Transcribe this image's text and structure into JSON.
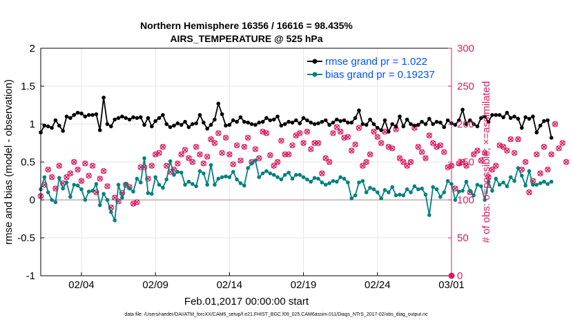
{
  "chart_data": {
    "type": "line",
    "title_line1": "Northern Hemisphere 16356 / 16616 = 98.435%",
    "title_line2": "AIRS_TEMPERATURE @ 525 hPa",
    "xlabel": "Feb.01,2017 00:00:00 start",
    "ylabel_left": "rmse and bias (model - observation)",
    "ylabel_right": "# of obs: o=possible; ×=assimilated",
    "footnote": "data file: /Users/raeder/DAI/ATM_forcXX/CAM6_setup/f.e21.FHIST_BGC.f09_025.CAM6assim.011/Diags_NTrS_2017-02/obs_diag_output.nc",
    "x_ticks": [
      "02/04",
      "02/09",
      "02/14",
      "02/19",
      "02/24",
      "03/01"
    ],
    "x_tick_days": [
      3,
      8,
      13,
      18,
      23,
      28
    ],
    "xlim": [
      0.25,
      28.0
    ],
    "ylim_left": [
      -1,
      2
    ],
    "y_ticks_left": [
      "-1",
      "-0.5",
      "0",
      "0.5",
      "1",
      "1.5",
      "2"
    ],
    "ylim_right": [
      0,
      300
    ],
    "y_ticks_right": [
      "0",
      "50",
      "100",
      "150",
      "200",
      "250",
      "300"
    ],
    "colors": {
      "rmse": "#000000",
      "bias": "#008080",
      "obs": "#d81b60",
      "legend_text": "#0050ff",
      "zero": "#b08080"
    },
    "legend": {
      "rmse": "rmse grand pr = 1.022",
      "bias": "bias grand pr = 0.19237"
    },
    "x_start": 0.25,
    "x_step": 0.25,
    "series": [
      {
        "name": "rmse",
        "values": [
          0.89,
          0.98,
          0.97,
          0.95,
          1.05,
          0.98,
          0.91,
          1.1,
          1.08,
          1.12,
          1.15,
          1.14,
          1.1,
          1.12,
          1.12,
          1.13,
          0.92,
          1.35,
          1.0,
          0.97,
          1.06,
          1.08,
          1.1,
          1.08,
          1.06,
          1.09,
          1.08,
          1.09,
          0.99,
          1.08,
          0.97,
          1.04,
          1.08,
          1.12,
          1.0,
          0.96,
          0.98,
          1.01,
          0.99,
          1.03,
          0.96,
          1.0,
          1.01,
          1.12,
          1.02,
          0.94,
          0.99,
          1.06,
          1.27,
          1.13,
          0.98,
          0.99,
          1.05,
          1.03,
          1.09,
          1.03,
          1.02,
          1.0,
          0.99,
          1.02,
          1.03,
          1.08,
          1.05,
          1.06,
          1.1,
          0.98,
          1.0,
          1.03,
          1.02,
          1.05,
          1.01,
          1.08,
          1.05,
          1.02,
          1.0,
          1.01,
          1.03,
          1.05,
          0.99,
          1.02,
          1.06,
          1.04,
          1.05,
          1.02,
          1.02,
          1.08,
          1.18,
          1.0,
          0.99,
          1.06,
          1.0,
          0.95,
          0.92,
          1.05,
          0.9,
          1.0,
          0.97,
          1.1,
          0.97,
          1.06,
          1.0,
          0.98,
          0.99,
          1.03,
          1.0,
          1.07,
          1.0,
          1.03,
          1.02,
          0.96,
          1.05,
          1.01,
          0.99,
          1.05,
          1.19,
          1.0,
          1.05,
          1.0,
          0.97,
          1.08,
          1.1,
          1.03,
          1.12,
          1.12,
          1.12,
          1.09,
          1.15,
          1.08,
          1.1,
          1.07,
          0.95,
          1.09,
          1.07,
          1.1,
          0.89,
          0.98,
          1.04,
          1.05,
          0.82
        ]
      },
      {
        "name": "bias",
        "values": [
          0.14,
          0.3,
          0.1,
          0.0,
          -0.03,
          0.29,
          0.15,
          0.23,
          0.04,
          0.2,
          0.19,
          0.14,
          0.0,
          0.11,
          0.12,
          0.21,
          -0.07,
          0.08,
          0.0,
          -0.16,
          -0.27,
          0.2,
          0.03,
          0.21,
          0.15,
          0.11,
          0.28,
          0.23,
          0.55,
          0.09,
          0.08,
          0.3,
          0.2,
          0.16,
          0.27,
          0.51,
          0.33,
          0.37,
          0.36,
          0.2,
          0.24,
          0.21,
          0.18,
          0.38,
          0.35,
          0.2,
          0.46,
          0.2,
          0.28,
          0.3,
          0.31,
          0.3,
          0.37,
          0.27,
          0.22,
          0.19,
          0.42,
          0.48,
          0.52,
          0.3,
          0.35,
          0.38,
          0.35,
          0.33,
          0.3,
          0.27,
          0.33,
          0.36,
          0.28,
          0.33,
          0.33,
          0.3,
          0.27,
          0.24,
          0.29,
          0.28,
          0.23,
          0.2,
          0.22,
          0.25,
          0.24,
          0.3,
          0.28,
          0.23,
          0.02,
          0.06,
          0.23,
          0.25,
          0.1,
          0.16,
          0.14,
          0.1,
          0.02,
          0.13,
          0.1,
          0.17,
          0.06,
          0.07,
          0.06,
          0.14,
          0.1,
          0.18,
          0.14,
          0.15,
          0.07,
          -0.2,
          0.17,
          0.14,
          0.04,
          0.1,
          0.25,
          0.21,
          0.0,
          0.11,
          0.12,
          0.24,
          0.12,
          0.06,
          0.2,
          0.18,
          0.0,
          0.24,
          0.12,
          0.28,
          0.2,
          0.23,
          0.18,
          0.3,
          0.25,
          0.42,
          0.32,
          0.19,
          0.38,
          0.2,
          0.2,
          0.22,
          0.24,
          0.21,
          0.24
        ]
      },
      {
        "name": "obs_count",
        "values": [
          105,
          120,
          140,
          130,
          115,
          145,
          122,
          130,
          135,
          150,
          140,
          125,
          148,
          132,
          145,
          110,
          128,
          138,
          118,
          90,
          103,
          98,
          109,
          120,
          117,
          95,
          97,
          143,
          143,
          128,
          145,
          160,
          162,
          170,
          145,
          137,
          140,
          148,
          160,
          166,
          155,
          150,
          170,
          160,
          148,
          157,
          180,
          175,
          188,
          162,
          182,
          160,
          147,
          172,
          152,
          170,
          182,
          150,
          167,
          155,
          190,
          188,
          159,
          145,
          150,
          178,
          160,
          160,
          172,
          185,
          188,
          175,
          190,
          167,
          175,
          175,
          135,
          155,
          150,
          188,
          196,
          190,
          182,
          183,
          165,
          173,
          195,
          145,
          150,
          160,
          190,
          183,
          175,
          190,
          170,
          168,
          193,
          155,
          150,
          145,
          150,
          195,
          170,
          163,
          155,
          185,
          175,
          170,
          172,
          163,
          143,
          145,
          115,
          148,
          150,
          145,
          110,
          160,
          165,
          152,
          162,
          130,
          140,
          145,
          172,
          170,
          165,
          180,
          162,
          180,
          140,
          150,
          110,
          125,
          160,
          135,
          170,
          140,
          160,
          200,
          168,
          175,
          150
        ]
      }
    ]
  }
}
